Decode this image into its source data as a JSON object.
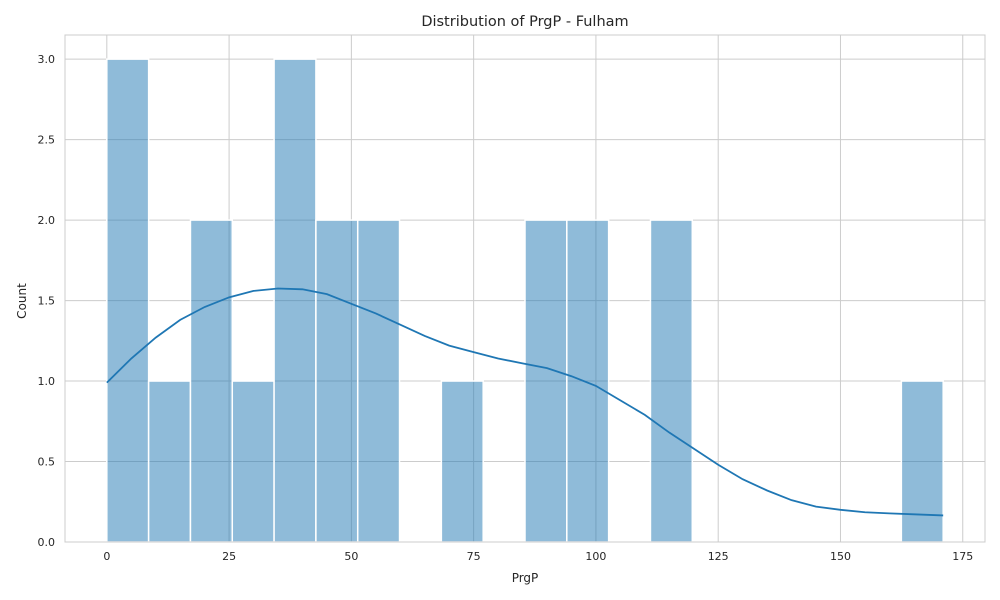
{
  "chart_data": {
    "type": "bar",
    "title": "Distribution of PrgP - Fulham",
    "xlabel": "PrgP",
    "ylabel": "Count",
    "xlim": [
      -8.55,
      179.55
    ],
    "ylim": [
      0,
      3.15
    ],
    "grid": true,
    "legend": "none",
    "xticks": [
      "0",
      "25",
      "50",
      "75",
      "100",
      "125",
      "150",
      "175"
    ],
    "yticks": [
      "0.0",
      "0.5",
      "1.0",
      "1.5",
      "2.0",
      "2.5",
      "3.0"
    ],
    "bins": [
      {
        "x0": 0.0,
        "x1": 8.55,
        "count": 3
      },
      {
        "x0": 8.55,
        "x1": 17.1,
        "count": 1
      },
      {
        "x0": 17.1,
        "x1": 25.65,
        "count": 2
      },
      {
        "x0": 25.65,
        "x1": 34.2,
        "count": 1
      },
      {
        "x0": 34.2,
        "x1": 42.75,
        "count": 3
      },
      {
        "x0": 42.75,
        "x1": 51.3,
        "count": 2
      },
      {
        "x0": 51.3,
        "x1": 59.85,
        "count": 2
      },
      {
        "x0": 59.85,
        "x1": 68.4,
        "count": 0
      },
      {
        "x0": 68.4,
        "x1": 76.95,
        "count": 1
      },
      {
        "x0": 76.95,
        "x1": 85.5,
        "count": 0
      },
      {
        "x0": 85.5,
        "x1": 94.05,
        "count": 2
      },
      {
        "x0": 94.05,
        "x1": 102.6,
        "count": 2
      },
      {
        "x0": 102.6,
        "x1": 111.15,
        "count": 0
      },
      {
        "x0": 111.15,
        "x1": 119.7,
        "count": 2
      },
      {
        "x0": 119.7,
        "x1": 128.25,
        "count": 0
      },
      {
        "x0": 128.25,
        "x1": 136.8,
        "count": 0
      },
      {
        "x0": 136.8,
        "x1": 145.35,
        "count": 0
      },
      {
        "x0": 145.35,
        "x1": 153.9,
        "count": 0
      },
      {
        "x0": 153.9,
        "x1": 162.45,
        "count": 0
      },
      {
        "x0": 162.45,
        "x1": 171.0,
        "count": 1
      }
    ],
    "kde": {
      "x": [
        0,
        5,
        10,
        15,
        20,
        25,
        30,
        35,
        40,
        45,
        50,
        55,
        60,
        65,
        70,
        75,
        80,
        85,
        90,
        95,
        100,
        105,
        110,
        115,
        120,
        125,
        130,
        135,
        140,
        145,
        150,
        155,
        160,
        165,
        171
      ],
      "y": [
        0.99,
        1.14,
        1.27,
        1.38,
        1.46,
        1.52,
        1.56,
        1.575,
        1.57,
        1.54,
        1.48,
        1.42,
        1.35,
        1.28,
        1.22,
        1.18,
        1.14,
        1.11,
        1.08,
        1.03,
        0.97,
        0.88,
        0.79,
        0.68,
        0.58,
        0.48,
        0.39,
        0.32,
        0.26,
        0.22,
        0.2,
        0.185,
        0.178,
        0.172,
        0.165
      ]
    },
    "colors": {
      "bar_fill": "#1f77b4",
      "bar_fill_opacity": 0.5,
      "bar_edge": "#ffffff",
      "line": "#1f77b4",
      "grid": "#cccccc",
      "frame": "#cccccc"
    }
  }
}
